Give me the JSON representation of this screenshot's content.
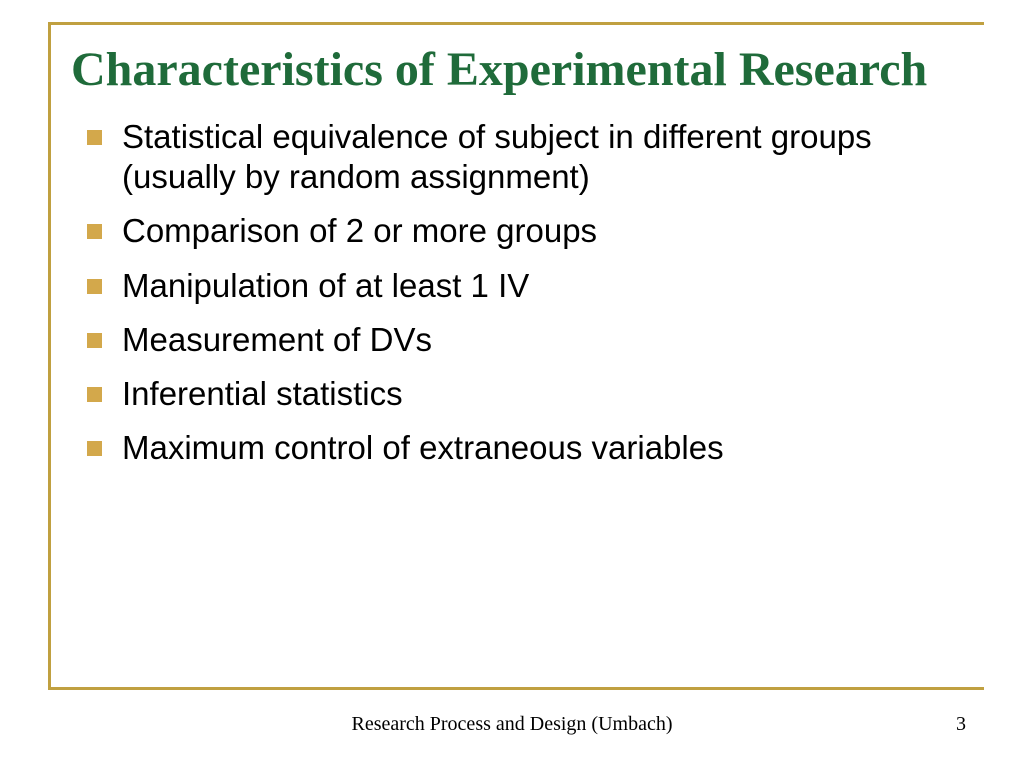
{
  "slide": {
    "title": "Characteristics of Experimental Research",
    "title_color": "#1f6b3a",
    "title_fontsize": 48,
    "title_font": "Garamond",
    "frame_color": "#c0a040",
    "frame_width": 3,
    "background_color": "#ffffff",
    "bullets": {
      "color": "#d3a84b",
      "size": 15,
      "text_color": "#000000",
      "text_fontsize": 33,
      "text_font": "Arial",
      "items": [
        "Statistical equivalence of subject in different groups (usually by random assignment)",
        "Comparison of 2 or more groups",
        "Manipulation of at least 1 IV",
        "Measurement of DVs",
        "Inferential statistics",
        "Maximum control of extraneous variables"
      ]
    },
    "footer": {
      "text": "Research Process and Design (Umbach)",
      "page_number": "3",
      "fontsize": 20,
      "font": "Garamond",
      "color": "#000000"
    }
  }
}
